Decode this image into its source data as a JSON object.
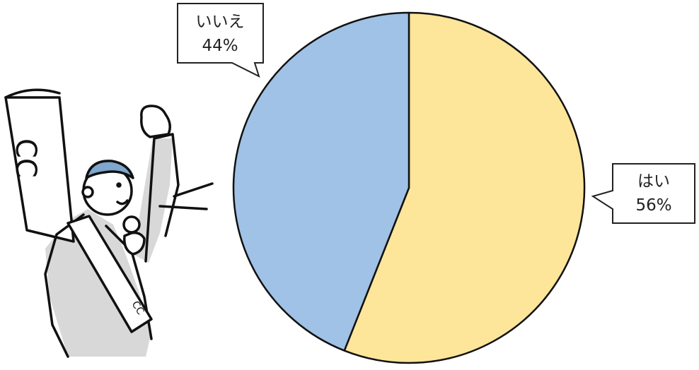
{
  "chart_data": {
    "type": "pie",
    "categories": [
      "はい",
      "いいえ"
    ],
    "values": [
      56,
      44
    ],
    "value_labels": [
      "56%",
      "44%"
    ],
    "colors": [
      "#fde59a",
      "#9fc2e6"
    ],
    "start": "12 o'clock",
    "direction": "clockwise",
    "legend": "none"
  },
  "illustration": {
    "subject": "candidate-with-megaphone-and-banner",
    "banner_text": "CC",
    "sash_text": "CC"
  }
}
